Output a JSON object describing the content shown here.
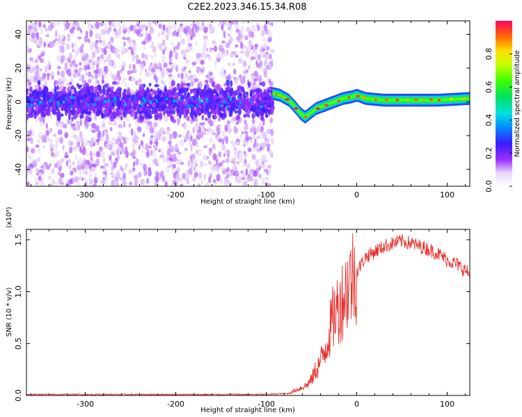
{
  "figure": {
    "title": "C2E2.2023.346.15.34.R08"
  },
  "chart_data": [
    {
      "type": "heatmap",
      "title": "C2E2.2023.346.15.34.R08",
      "xlabel": "Height of straight line (km)",
      "ylabel": "Frequency (Hz)",
      "xlim": [
        -365,
        125
      ],
      "ylim": [
        -50,
        48
      ],
      "x_ticks": [
        -300,
        -200,
        -100,
        0,
        100
      ],
      "y_ticks": [
        -40,
        -20,
        0,
        20,
        40
      ],
      "x_tick_labels": [
        "-300",
        "-200",
        "-100",
        "0",
        "100"
      ],
      "y_tick_labels": [
        "-40",
        "-20",
        "0",
        "20",
        "40"
      ],
      "noise_region_x": [
        -365,
        -93
      ],
      "signal_track": [
        {
          "x": -93,
          "y": 5
        },
        {
          "x": -85,
          "y": 4
        },
        {
          "x": -75,
          "y": 1
        },
        {
          "x": -68,
          "y": -3
        },
        {
          "x": -62,
          "y": -7
        },
        {
          "x": -57,
          "y": -9
        },
        {
          "x": -52,
          "y": -7
        },
        {
          "x": -45,
          "y": -4
        },
        {
          "x": -35,
          "y": -2
        },
        {
          "x": -25,
          "y": 0
        },
        {
          "x": -15,
          "y": 2
        },
        {
          "x": -5,
          "y": 3
        },
        {
          "x": 0,
          "y": 4
        },
        {
          "x": 10,
          "y": 2
        },
        {
          "x": 30,
          "y": 1
        },
        {
          "x": 60,
          "y": 1
        },
        {
          "x": 90,
          "y": 1
        },
        {
          "x": 125,
          "y": 2
        }
      ],
      "colorbar": {
        "label": "Normalized spectral amplitude",
        "range": [
          0,
          1
        ],
        "ticks": [
          0.0,
          0.2,
          0.4,
          0.6,
          0.8
        ],
        "tick_labels": [
          "0.0",
          "0.2",
          "0.4",
          "0.6",
          "0.8"
        ]
      }
    },
    {
      "type": "line",
      "xlabel": "Height of straight line (km)",
      "ylabel": "SNR (10 * v/v)",
      "y_scale_note": "(x10⁴)",
      "xlim": [
        -365,
        125
      ],
      "ylim": [
        0,
        1.6
      ],
      "x_ticks": [
        -300,
        -200,
        -100,
        0,
        100
      ],
      "y_ticks": [
        0.0,
        0.5,
        1.0,
        1.5
      ],
      "x_tick_labels": [
        "-300",
        "-200",
        "-100",
        "0",
        "100"
      ],
      "y_tick_labels": [
        "0.0",
        "0.5",
        "1.0",
        "1.5"
      ],
      "series": [
        {
          "color": "#e8312e",
          "x": [
            -365,
            -300,
            -200,
            -100,
            -75,
            -65,
            -55,
            -50,
            -45,
            -40,
            -35,
            -30,
            -25,
            -20,
            -15,
            -10,
            -5,
            0,
            5,
            10,
            20,
            30,
            40,
            50,
            60,
            70,
            80,
            90,
            100,
            110,
            120,
            125
          ],
          "y": [
            0.01,
            0.01,
            0.01,
            0.01,
            0.02,
            0.06,
            0.1,
            0.15,
            0.25,
            0.32,
            0.45,
            0.62,
            0.78,
            0.85,
            0.95,
            1.05,
            1.15,
            1.2,
            1.28,
            1.35,
            1.4,
            1.45,
            1.48,
            1.5,
            1.48,
            1.45,
            1.42,
            1.38,
            1.32,
            1.28,
            1.22,
            1.18
          ]
        }
      ]
    }
  ],
  "colors": {
    "axis": "#000000",
    "line": "#e8312e",
    "noise_light": "#d8c4f4",
    "noise_dark": "#6a10ee"
  }
}
